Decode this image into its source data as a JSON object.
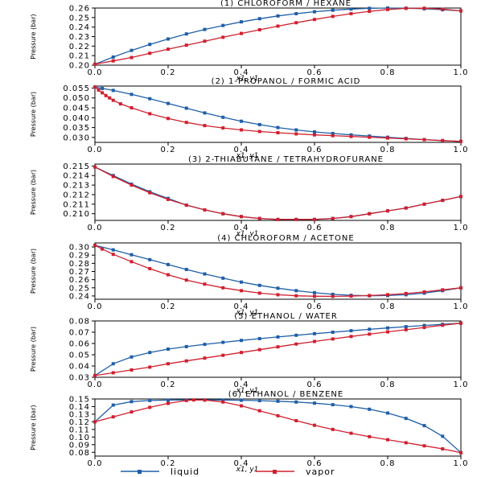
{
  "chart_data": [
    {
      "type": "line",
      "title": "(1) CHLOROFORM / HEXANE",
      "xlabel": "x1, y1",
      "ylabel": "Pressure (bar)",
      "xlim": [
        0,
        1
      ],
      "ylim": [
        0.2,
        0.26
      ],
      "xticks": [
        0.0,
        0.2,
        0.4,
        0.6,
        0.8,
        1.0
      ],
      "yticks": [
        0.2,
        0.21,
        0.22,
        0.23,
        0.24,
        0.25,
        0.26
      ],
      "ytick_decimals": 2,
      "series": [
        {
          "name": "liquid",
          "x": [
            0,
            0.05,
            0.1,
            0.15,
            0.2,
            0.25,
            0.3,
            0.35,
            0.4,
            0.45,
            0.5,
            0.55,
            0.6,
            0.65,
            0.7,
            0.75,
            0.8,
            0.85,
            0.9,
            0.95,
            1.0
          ],
          "y": [
            0.201,
            0.2085,
            0.2155,
            0.2218,
            0.2275,
            0.2328,
            0.2375,
            0.2417,
            0.2455,
            0.2488,
            0.2517,
            0.2541,
            0.2561,
            0.2577,
            0.2589,
            0.2597,
            0.26,
            0.2598,
            0.2592,
            0.2582,
            0.257
          ]
        },
        {
          "name": "vapor",
          "x": [
            0,
            0.05,
            0.1,
            0.15,
            0.2,
            0.25,
            0.3,
            0.35,
            0.4,
            0.45,
            0.5,
            0.55,
            0.6,
            0.65,
            0.7,
            0.75,
            0.8,
            0.85,
            0.9,
            0.95,
            1.0
          ],
          "y": [
            0.201,
            0.2045,
            0.208,
            0.2125,
            0.2168,
            0.221,
            0.2252,
            0.2293,
            0.2333,
            0.2372,
            0.241,
            0.2446,
            0.248,
            0.2512,
            0.2541,
            0.2565,
            0.2585,
            0.2597,
            0.2598,
            0.2588,
            0.257
          ]
        }
      ]
    },
    {
      "type": "line",
      "title": "(2) 1-PROPANOL / FORMIC ACID",
      "xlabel": "x1, y1",
      "ylabel": "Pressure (bar)",
      "xlim": [
        0,
        1
      ],
      "ylim": [
        0.0275,
        0.056
      ],
      "xticks": [
        0.0,
        0.2,
        0.4,
        0.6,
        0.8,
        1.0
      ],
      "yticks": [
        0.03,
        0.035,
        0.04,
        0.045,
        0.05,
        0.055
      ],
      "ytick_decimals": 3,
      "series": [
        {
          "name": "liquid",
          "x": [
            0,
            0.02,
            0.05,
            0.1,
            0.15,
            0.2,
            0.25,
            0.3,
            0.35,
            0.4,
            0.45,
            0.5,
            0.55,
            0.6,
            0.65,
            0.7,
            0.75,
            0.8,
            0.85,
            0.9,
            0.95,
            1.0
          ],
          "y": [
            0.0555,
            0.0548,
            0.0538,
            0.0518,
            0.0496,
            0.0472,
            0.0448,
            0.0424,
            0.0402,
            0.0382,
            0.0365,
            0.035,
            0.0338,
            0.0328,
            0.032,
            0.0313,
            0.0307,
            0.0301,
            0.0295,
            0.0289,
            0.0284,
            0.028
          ]
        },
        {
          "name": "vapor",
          "x": [
            0,
            0.01,
            0.02,
            0.03,
            0.04,
            0.05,
            0.07,
            0.1,
            0.15,
            0.2,
            0.25,
            0.3,
            0.35,
            0.4,
            0.45,
            0.5,
            0.55,
            0.6,
            0.65,
            0.7,
            0.75,
            0.8,
            0.85,
            0.9,
            0.95,
            1.0
          ],
          "y": [
            0.0555,
            0.054,
            0.0526,
            0.0512,
            0.05,
            0.0488,
            0.047,
            0.045,
            0.042,
            0.0396,
            0.0376,
            0.036,
            0.0348,
            0.0338,
            0.033,
            0.0324,
            0.0318,
            0.0313,
            0.0309,
            0.0305,
            0.0301,
            0.0297,
            0.0293,
            0.0289,
            0.0284,
            0.028
          ]
        }
      ]
    },
    {
      "type": "line",
      "title": "(3) 2-THIABUTANE / TETRAHYDROFURANE",
      "xlabel": "x1, y1",
      "ylabel": "Pressure (bar)",
      "xlim": [
        0,
        1
      ],
      "ylim": [
        0.2093,
        0.2152
      ],
      "xticks": [
        0.0,
        0.2,
        0.4,
        0.6,
        0.8,
        1.0
      ],
      "yticks": [
        0.21,
        0.211,
        0.212,
        0.213,
        0.214,
        0.215
      ],
      "ytick_decimals": 3,
      "series": [
        {
          "name": "liquid",
          "x": [
            0,
            0.05,
            0.1,
            0.15,
            0.2,
            0.25,
            0.3,
            0.35,
            0.4,
            0.45,
            0.5,
            0.55,
            0.6,
            0.65,
            0.7,
            0.75,
            0.8,
            0.85,
            0.9,
            0.95,
            1.0
          ],
          "y": [
            0.2149,
            0.214,
            0.2131,
            0.2123,
            0.2116,
            0.2109,
            0.2104,
            0.21,
            0.2097,
            0.2095,
            0.2094,
            0.2094,
            0.2094,
            0.2095,
            0.2097,
            0.21,
            0.2103,
            0.2106,
            0.211,
            0.2114,
            0.2118
          ]
        },
        {
          "name": "vapor",
          "x": [
            0,
            0.05,
            0.1,
            0.15,
            0.2,
            0.25,
            0.3,
            0.35,
            0.4,
            0.45,
            0.5,
            0.55,
            0.6,
            0.65,
            0.7,
            0.75,
            0.8,
            0.85,
            0.9,
            0.95,
            1.0
          ],
          "y": [
            0.2149,
            0.2139,
            0.213,
            0.2122,
            0.2115,
            0.2109,
            0.2104,
            0.21,
            0.2097,
            0.2095,
            0.2094,
            0.2094,
            0.2094,
            0.2095,
            0.2097,
            0.21,
            0.2103,
            0.2106,
            0.211,
            0.2114,
            0.2118
          ]
        }
      ]
    },
    {
      "type": "line",
      "title": "(4) CHLOROFORM / ACETONE",
      "xlabel": "x1, y1",
      "ylabel": "Pressure (bar)",
      "xlim": [
        0,
        1
      ],
      "ylim": [
        0.236,
        0.305
      ],
      "xticks": [
        0.0,
        0.2,
        0.4,
        0.6,
        0.8,
        1.0
      ],
      "yticks": [
        0.24,
        0.25,
        0.26,
        0.27,
        0.28,
        0.29,
        0.3
      ],
      "ytick_decimals": 2,
      "series": [
        {
          "name": "liquid",
          "x": [
            0,
            0.05,
            0.1,
            0.15,
            0.2,
            0.25,
            0.3,
            0.35,
            0.4,
            0.45,
            0.5,
            0.55,
            0.6,
            0.65,
            0.7,
            0.75,
            0.8,
            0.85,
            0.9,
            0.95,
            1.0
          ],
          "y": [
            0.302,
            0.2965,
            0.2905,
            0.2845,
            0.2785,
            0.2725,
            0.267,
            0.2618,
            0.257,
            0.253,
            0.2495,
            0.2465,
            0.244,
            0.242,
            0.2408,
            0.2402,
            0.2405,
            0.2415,
            0.2435,
            0.2465,
            0.25
          ]
        },
        {
          "name": "vapor",
          "x": [
            0,
            0.02,
            0.05,
            0.1,
            0.15,
            0.2,
            0.25,
            0.3,
            0.35,
            0.4,
            0.45,
            0.5,
            0.55,
            0.6,
            0.65,
            0.7,
            0.75,
            0.8,
            0.85,
            0.9,
            0.95,
            1.0
          ],
          "y": [
            0.302,
            0.2975,
            0.291,
            0.282,
            0.2735,
            0.266,
            0.2595,
            0.2545,
            0.25,
            0.2465,
            0.2435,
            0.2415,
            0.2402,
            0.2396,
            0.2395,
            0.2398,
            0.2405,
            0.2415,
            0.243,
            0.245,
            0.2475,
            0.25
          ]
        }
      ]
    },
    {
      "type": "line",
      "title": "(5) ETHANOL / WATER",
      "xlabel": "x1, y1",
      "ylabel": "Pressure (bar)",
      "xlim": [
        0,
        1
      ],
      "ylim": [
        0.03,
        0.08
      ],
      "xticks": [
        0.0,
        0.2,
        0.4,
        0.6,
        0.8,
        1.0
      ],
      "yticks": [
        0.03,
        0.04,
        0.05,
        0.06,
        0.07,
        0.08
      ],
      "ytick_decimals": 2,
      "series": [
        {
          "name": "liquid",
          "x": [
            0,
            0.05,
            0.1,
            0.15,
            0.2,
            0.25,
            0.3,
            0.35,
            0.4,
            0.45,
            0.5,
            0.55,
            0.6,
            0.65,
            0.7,
            0.75,
            0.8,
            0.85,
            0.9,
            0.95,
            1.0
          ],
          "y": [
            0.0315,
            0.042,
            0.048,
            0.052,
            0.055,
            0.0572,
            0.0592,
            0.061,
            0.0627,
            0.0643,
            0.0658,
            0.0673,
            0.0687,
            0.07,
            0.0713,
            0.0726,
            0.0738,
            0.0749,
            0.076,
            0.077,
            0.078
          ]
        },
        {
          "name": "vapor",
          "x": [
            0,
            0.05,
            0.1,
            0.15,
            0.2,
            0.25,
            0.3,
            0.35,
            0.4,
            0.45,
            0.5,
            0.55,
            0.6,
            0.65,
            0.7,
            0.75,
            0.8,
            0.85,
            0.9,
            0.95,
            1.0
          ],
          "y": [
            0.0315,
            0.034,
            0.0365,
            0.039,
            0.042,
            0.0445,
            0.047,
            0.0495,
            0.052,
            0.0545,
            0.057,
            0.0595,
            0.0618,
            0.064,
            0.0662,
            0.0683,
            0.0703,
            0.0722,
            0.0742,
            0.0762,
            0.078
          ]
        }
      ]
    },
    {
      "type": "line",
      "title": "(6) ETHANOL / BENZENE",
      "xlabel": "x1, y1",
      "ylabel": "Pressure (bar)",
      "xlim": [
        0,
        1
      ],
      "ylim": [
        0.075,
        0.15
      ],
      "xticks": [
        0.0,
        0.2,
        0.4,
        0.6,
        0.8,
        1.0
      ],
      "yticks": [
        0.08,
        0.09,
        0.1,
        0.11,
        0.12,
        0.13,
        0.14,
        0.15
      ],
      "ytick_decimals": 2,
      "series": [
        {
          "name": "liquid",
          "x": [
            0,
            0.05,
            0.1,
            0.15,
            0.2,
            0.25,
            0.3,
            0.35,
            0.4,
            0.45,
            0.5,
            0.55,
            0.6,
            0.65,
            0.7,
            0.75,
            0.8,
            0.85,
            0.9,
            0.95,
            1.0
          ],
          "y": [
            0.12,
            0.142,
            0.1465,
            0.148,
            0.1485,
            0.1487,
            0.1487,
            0.1486,
            0.1483,
            0.1478,
            0.147,
            0.146,
            0.1445,
            0.1425,
            0.14,
            0.1365,
            0.1315,
            0.1245,
            0.115,
            0.101,
            0.0795
          ]
        },
        {
          "name": "vapor",
          "x": [
            0,
            0.05,
            0.1,
            0.15,
            0.2,
            0.25,
            0.27,
            0.3,
            0.35,
            0.4,
            0.45,
            0.5,
            0.55,
            0.6,
            0.65,
            0.7,
            0.75,
            0.8,
            0.85,
            0.9,
            0.95,
            1.0
          ],
          "y": [
            0.12,
            0.1265,
            0.133,
            0.139,
            0.1442,
            0.148,
            0.1487,
            0.1485,
            0.146,
            0.141,
            0.1345,
            0.128,
            0.1215,
            0.1155,
            0.11,
            0.105,
            0.1005,
            0.0965,
            0.0925,
            0.0885,
            0.0845,
            0.0795
          ]
        }
      ]
    }
  ],
  "legend": {
    "placement": "bottom",
    "items": [
      {
        "label": "liquid",
        "color": "#1f5fa8"
      },
      {
        "label": "vapor",
        "color": "#d0202f"
      }
    ]
  },
  "colors": {
    "liquid": "#1f5fa8",
    "vapor": "#d0202f"
  }
}
